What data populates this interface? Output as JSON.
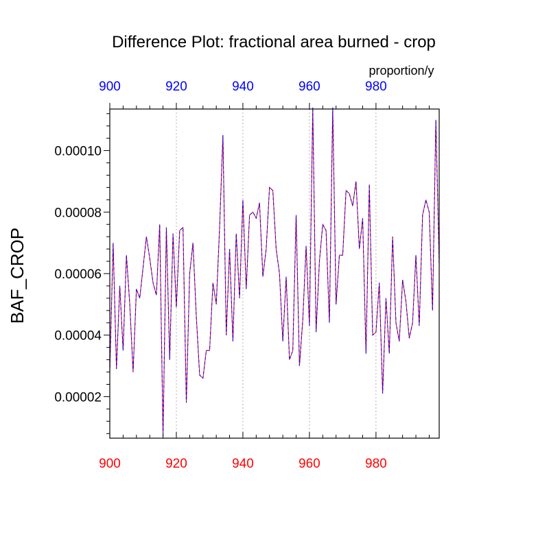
{
  "chart_data": {
    "type": "line",
    "title": "Difference Plot: fractional area burned - crop",
    "ylabel": "BAF_CROP",
    "units": "proportion/y",
    "xlim": [
      900,
      999
    ],
    "ylim": [
      6.5e-06,
      0.0001135
    ],
    "x_ticks": [
      900,
      920,
      940,
      960,
      980
    ],
    "x_tick_labels": [
      "900",
      "920",
      "940",
      "960",
      "980"
    ],
    "y_ticks": [
      2e-05,
      4e-05,
      6e-05,
      8e-05,
      0.0001
    ],
    "y_tick_labels": [
      "0.00002",
      "0.00004",
      "0.00006",
      "0.00008",
      "0.00010"
    ],
    "grid": "vertical dotted at major x ticks",
    "colors": {
      "bottom_axis_labels": "#ff0000",
      "top_axis_labels": "#0000ff",
      "series_a": "#ff0000",
      "series_b": "#0000ff",
      "grid": "#b0b0b0"
    },
    "x_start": 900,
    "x_step": 1,
    "series": [
      {
        "color": "#ff0000",
        "dash": "solid",
        "values": [
          2.8e-05,
          7e-05,
          2.9e-05,
          5.6e-05,
          3.5e-05,
          6.6e-05,
          5e-05,
          2.8e-05,
          5.5e-05,
          5.2e-05,
          6.2e-05,
          7.2e-05,
          6.5e-05,
          5.7e-05,
          5.3e-05,
          7.6e-05,
          7e-06,
          7.5e-05,
          3.2e-05,
          7.3e-05,
          4.9e-05,
          7.4e-05,
          7.5e-05,
          1.8e-05,
          6e-05,
          7e-05,
          4.6e-05,
          2.7e-05,
          2.6e-05,
          3.5e-05,
          3.5e-05,
          5.7e-05,
          5e-05,
          7.5e-05,
          0.000105,
          4e-05,
          6.8e-05,
          3.8e-05,
          7.3e-05,
          5.2e-05,
          8.4e-05,
          5.5e-05,
          7.9e-05,
          8e-05,
          7.8e-05,
          8.3e-05,
          5.9e-05,
          6.8e-05,
          8.8e-05,
          8.7e-05,
          6.8e-05,
          6e-05,
          3.8e-05,
          5.9e-05,
          3.2e-05,
          3.5e-05,
          7.9e-05,
          3e-05,
          4.5e-05,
          6.9e-05,
          4.3e-05,
          0.000114,
          4.1e-05,
          6.4e-05,
          7.6e-05,
          7.4e-05,
          4.4e-05,
          0.000114,
          5e-05,
          6.6e-05,
          6.6e-05,
          8.7e-05,
          8.6e-05,
          8.2e-05,
          9e-05,
          6.8e-05,
          7.8e-05,
          3.4e-05,
          8.9e-05,
          4e-05,
          4.1e-05,
          5.7e-05,
          2.1e-05,
          5.2e-05,
          3.4e-05,
          7.2e-05,
          4.4e-05,
          3.8e-05,
          5.8e-05,
          5.1e-05,
          3.9e-05,
          4.4e-05,
          6.6e-05,
          4.3e-05,
          7.9e-05,
          8.4e-05,
          8e-05,
          4.8e-05,
          0.00011,
          6.3e-05
        ]
      },
      {
        "color": "#0000ff",
        "dash": "dashed",
        "values": [
          2.8e-05,
          7e-05,
          2.9e-05,
          5.6e-05,
          3.5e-05,
          6.6e-05,
          5e-05,
          2.8e-05,
          5.5e-05,
          5.2e-05,
          6.2e-05,
          7.2e-05,
          6.5e-05,
          5.7e-05,
          5.3e-05,
          7.6e-05,
          7e-06,
          7.5e-05,
          3.2e-05,
          7.3e-05,
          4.9e-05,
          7.4e-05,
          7.5e-05,
          1.8e-05,
          6e-05,
          7e-05,
          4.6e-05,
          2.7e-05,
          2.6e-05,
          3.5e-05,
          3.5e-05,
          5.7e-05,
          5e-05,
          7.5e-05,
          0.000105,
          4e-05,
          6.8e-05,
          3.8e-05,
          7.3e-05,
          5.2e-05,
          8.4e-05,
          5.5e-05,
          7.9e-05,
          8e-05,
          7.8e-05,
          8.3e-05,
          5.9e-05,
          6.8e-05,
          8.8e-05,
          8.7e-05,
          6.8e-05,
          6e-05,
          3.8e-05,
          5.9e-05,
          3.2e-05,
          3.5e-05,
          7.9e-05,
          3e-05,
          4.5e-05,
          6.9e-05,
          4.3e-05,
          0.000114,
          4.1e-05,
          6.4e-05,
          7.6e-05,
          7.4e-05,
          4.4e-05,
          0.000114,
          5e-05,
          6.6e-05,
          6.6e-05,
          8.7e-05,
          8.6e-05,
          8.2e-05,
          9e-05,
          6.8e-05,
          7.8e-05,
          3.4e-05,
          8.9e-05,
          4e-05,
          4.1e-05,
          5.7e-05,
          2.1e-05,
          5.2e-05,
          3.4e-05,
          7.2e-05,
          4.4e-05,
          3.8e-05,
          5.8e-05,
          5.1e-05,
          3.9e-05,
          4.4e-05,
          6.6e-05,
          4.3e-05,
          7.9e-05,
          8.4e-05,
          8e-05,
          4.8e-05,
          0.00011,
          6.3e-05
        ]
      }
    ]
  }
}
